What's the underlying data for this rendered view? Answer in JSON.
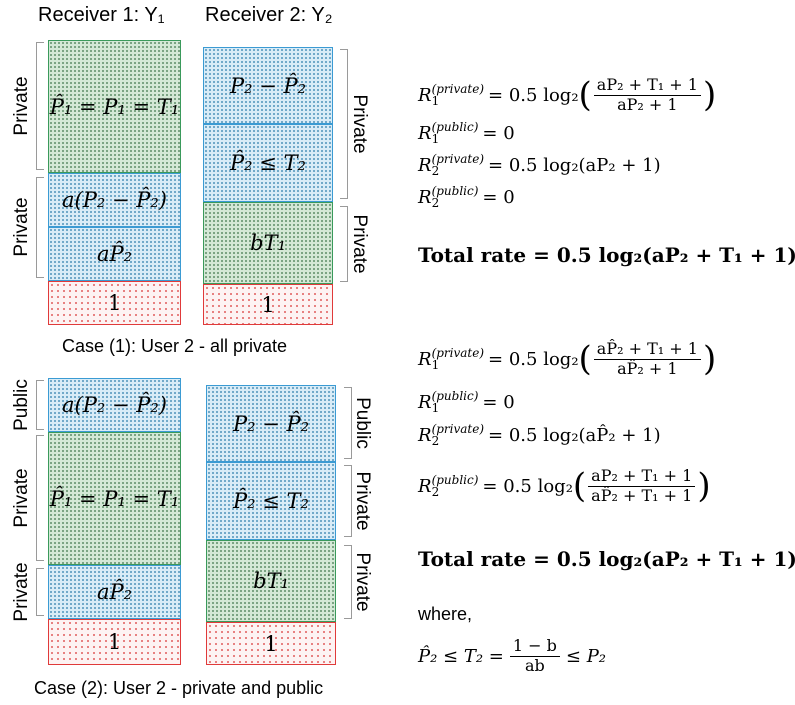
{
  "headers": {
    "receiver1": "Receiver 1: Y₁",
    "receiver2": "Receiver 2: Y₂"
  },
  "case1": {
    "caption": "Case (1): User 2 - all private",
    "col1": {
      "blocks": [
        "P̂₁ = P₁ = T₁",
        "a(P₂ − P̂₂)",
        "aP̂₂",
        "1"
      ],
      "labels": [
        "Private",
        "Private"
      ]
    },
    "col2": {
      "blocks": [
        "P₂ − P̂₂",
        "P̂₂ ≤ T₂",
        "bT₁",
        "1"
      ],
      "labels": [
        "Private",
        "Private"
      ]
    },
    "equations": [
      {
        "sym": "R",
        "sub": "1",
        "sup": "(private)",
        "rhs": "= 0.5 log₂",
        "num": "aP₂ + T₁ + 1",
        "den": "aP₂ + 1"
      },
      {
        "sym": "R",
        "sub": "1",
        "sup": "(public)",
        "rhs": "= 0"
      },
      {
        "sym": "R",
        "sub": "2",
        "sup": "(private)",
        "rhs": "= 0.5 log₂(aP₂ + 1)"
      },
      {
        "sym": "R",
        "sub": "2",
        "sup": "(public)",
        "rhs": "= 0"
      }
    ],
    "total": "Total rate = 0.5 log₂(aP₂ + T₁ + 1)"
  },
  "case2": {
    "caption": "Case (2): User 2 - private and public",
    "col1": {
      "blocks": [
        "a(P₂ − P̂₂)",
        "P̂₁ = P₁ = T₁",
        "aP̂₂",
        "1"
      ],
      "labels": [
        "Public",
        "Private",
        "Private"
      ]
    },
    "col2": {
      "blocks": [
        "P₂ − P̂₂",
        "P̂₂ ≤ T₂",
        "bT₁",
        "1"
      ],
      "labels": [
        "Public",
        "Private",
        "Private"
      ]
    },
    "equations": [
      {
        "sym": "R",
        "sub": "1",
        "sup": "(private)",
        "rhs": "= 0.5 log₂",
        "num": "aP̂₂ + T₁ + 1",
        "den": "aP̂₂ + 1"
      },
      {
        "sym": "R",
        "sub": "1",
        "sup": "(public)",
        "rhs": "= 0"
      },
      {
        "sym": "R",
        "sub": "2",
        "sup": "(private)",
        "rhs": "= 0.5 log₂(aP̂₂ + 1)"
      },
      {
        "sym": "R",
        "sub": "2",
        "sup": "(public)",
        "rhs": "= 0.5 log₂",
        "num": "aP₂ + T₁ + 1",
        "den": "aP̂₂ + T₁ + 1"
      }
    ],
    "total": "Total rate = 0.5 log₂(aP₂ + T₁ + 1)",
    "where_label": "where,",
    "where_eq": {
      "lhs": "P̂₂ ≤ T₂ =",
      "num": "1 − b",
      "den": "ab",
      "rhs": "≤ P₂"
    }
  },
  "colors": {
    "green_border": "#3a9a5b",
    "blue_border": "#3b9bd3",
    "red_border": "#e03a3a"
  }
}
